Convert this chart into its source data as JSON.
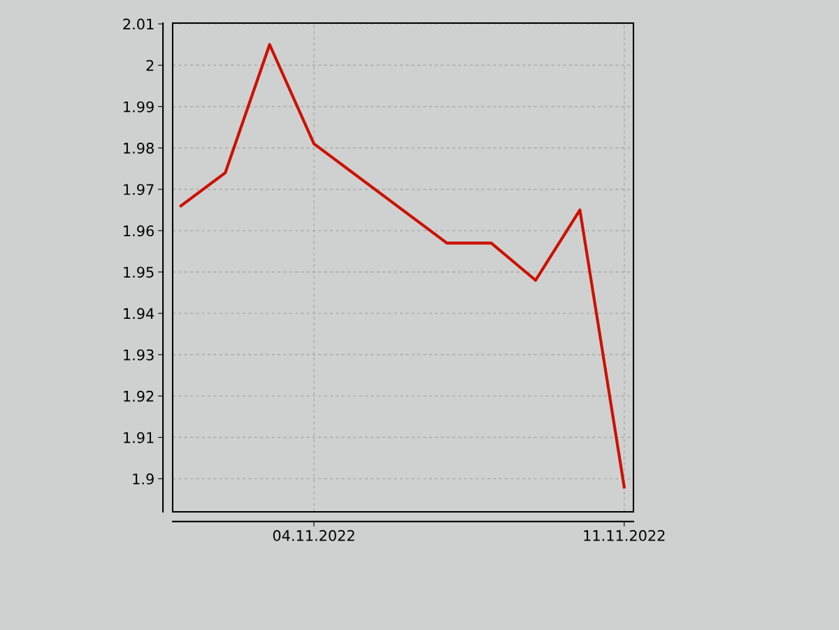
{
  "chart_data": {
    "type": "line",
    "x": [
      "2022-11-01",
      "2022-11-02",
      "2022-11-03",
      "2022-11-04",
      "2022-11-07",
      "2022-11-08",
      "2022-11-09",
      "2022-11-10",
      "2022-11-11"
    ],
    "series": [
      {
        "color": "#cc1100",
        "values": [
          1.966,
          1.974,
          2.005,
          1.981,
          1.957,
          1.957,
          1.948,
          1.965,
          1.898
        ]
      }
    ],
    "xlim": [
      "2022-10-31T19:30",
      "2022-11-11T05:00"
    ],
    "xticks": [
      {
        "value": "2022-11-04",
        "label": "04.11.2022"
      },
      {
        "value": "2022-11-11",
        "label": "11.11.2022"
      }
    ],
    "ylim": [
      1.892,
      2.0102
    ],
    "yticks": [
      1.9,
      1.91,
      1.92,
      1.93,
      1.94,
      1.95,
      1.96,
      1.97,
      1.98,
      1.99,
      2,
      2.01
    ],
    "grid": true,
    "marker": "none",
    "line_style": "solid"
  }
}
